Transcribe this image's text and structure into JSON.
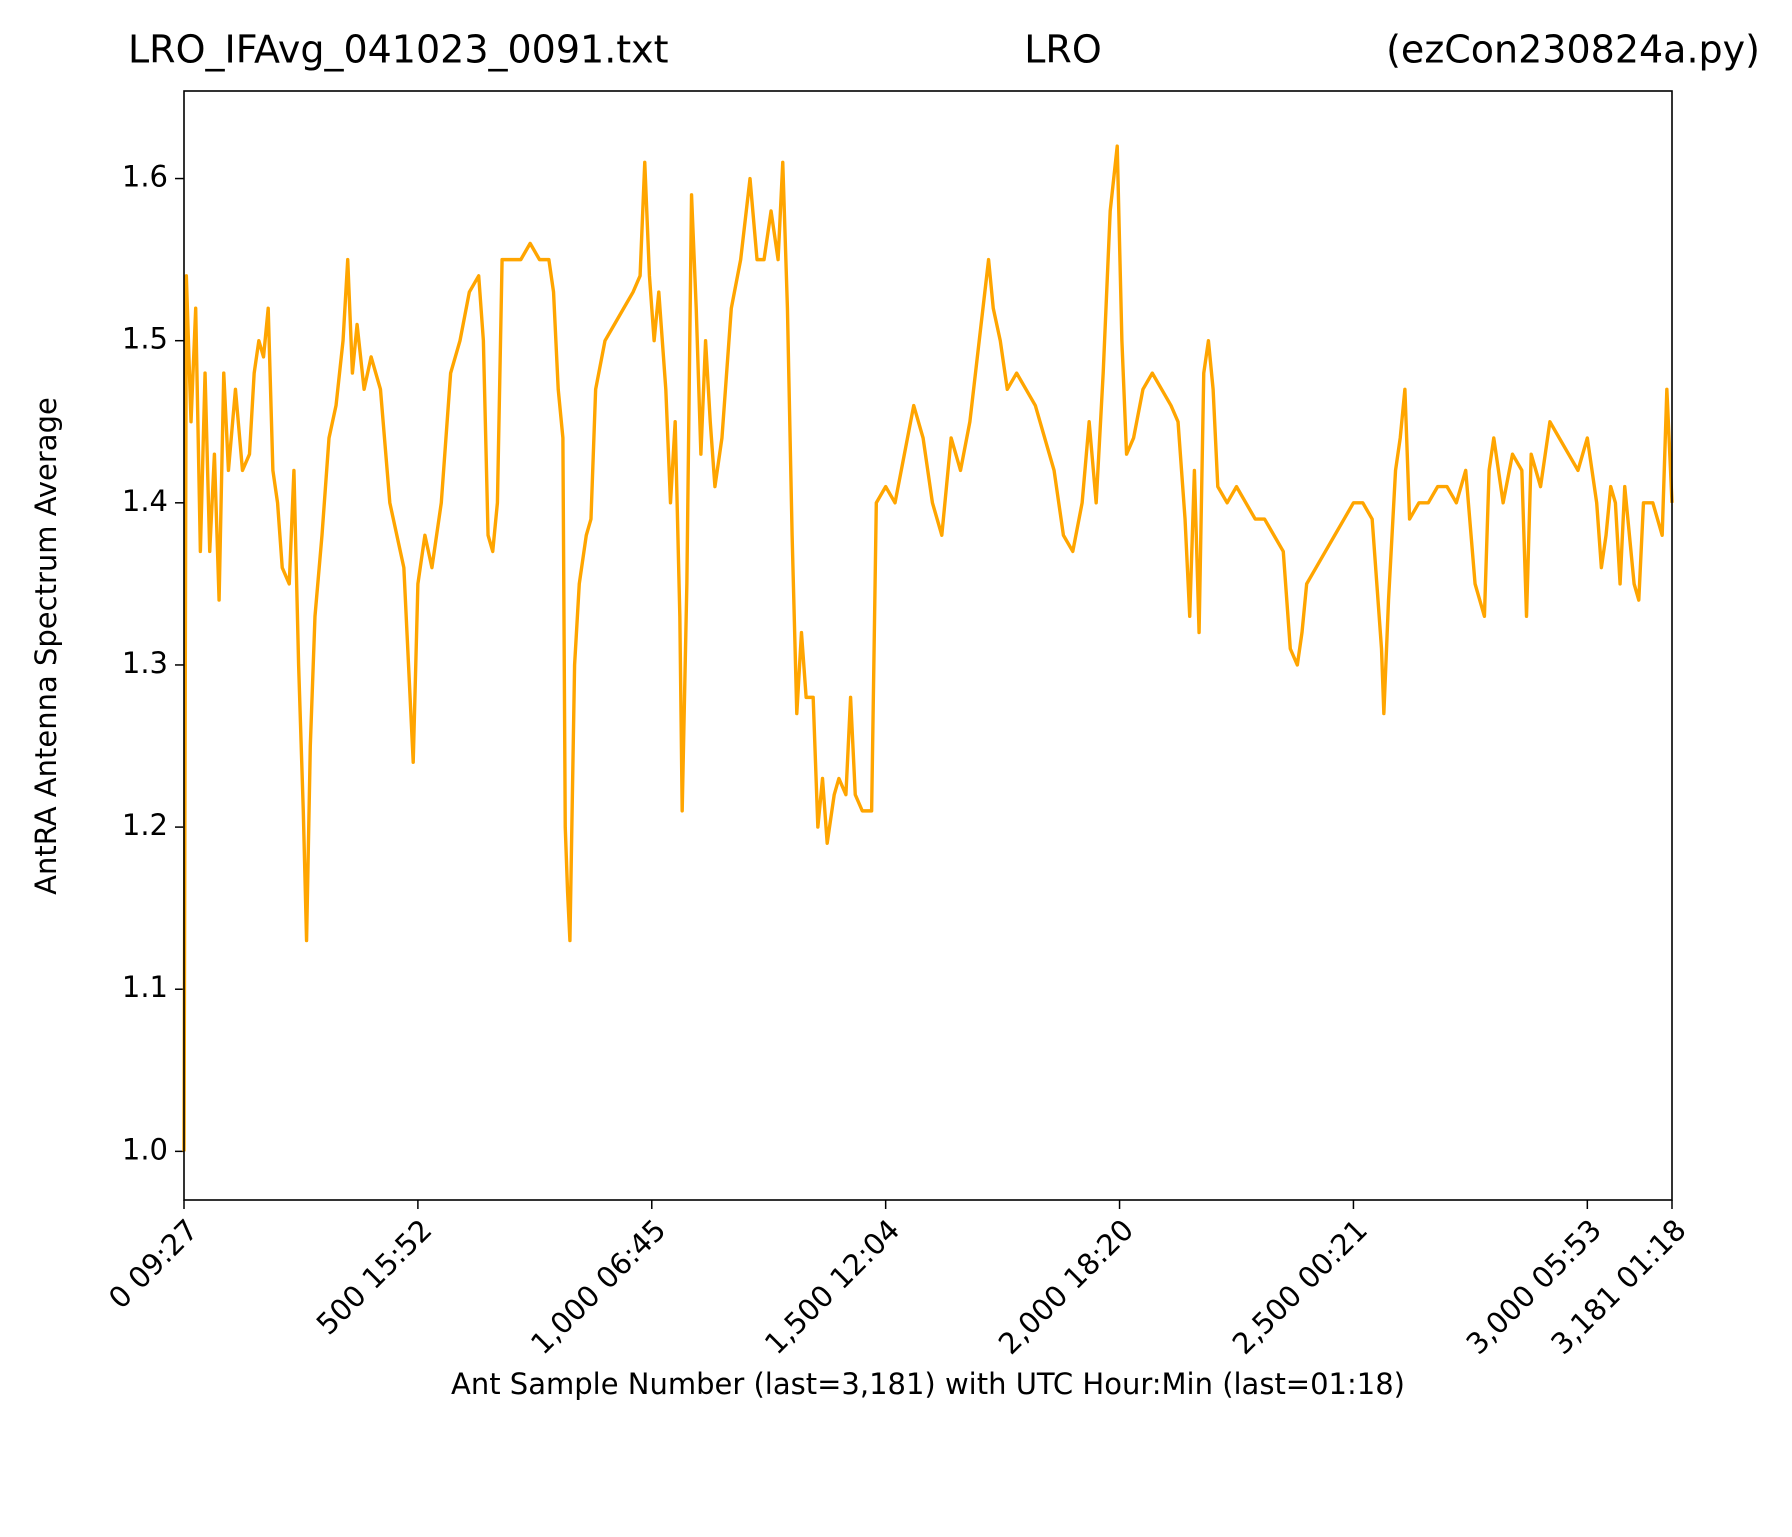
{
  "chart_data": {
    "type": "line",
    "title_left": "LRO_IFAvg_041023_0091.txt",
    "title_center": "LRO",
    "title_right": "(ezCon230824a.py)",
    "x_label": "Ant Sample Number (last=3,181) with UTC Hour:Min (last=01:18)",
    "y_label": "AntRA Antenna Spectrum Average",
    "xlim": [
      0,
      3181
    ],
    "ylim": [
      0.97,
      1.654
    ],
    "xticks": [
      {
        "value": 0,
        "label": "0  09:27"
      },
      {
        "value": 500,
        "label": "500  15:52"
      },
      {
        "value": 1000,
        "label": "1,000  06:45"
      },
      {
        "value": 1500,
        "label": "1,500  12:04"
      },
      {
        "value": 2000,
        "label": "2,000  18:20"
      },
      {
        "value": 2500,
        "label": "2,500  00:21"
      },
      {
        "value": 3000,
        "label": "3,000  05:53"
      },
      {
        "value": 3181,
        "label": "3,181  01:18"
      }
    ],
    "yticks": [
      {
        "value": 1,
        "label": "1.0"
      },
      1.1,
      1.2,
      1.3,
      1.4,
      1.5,
      1.6
    ],
    "grid": false,
    "series": [
      {
        "name": "AntRA",
        "color": "#FFA500",
        "x": [
          0,
          5,
          15,
          25,
          35,
          45,
          55,
          65,
          75,
          85,
          95,
          110,
          125,
          140,
          150,
          160,
          170,
          180,
          190,
          200,
          210,
          225,
          235,
          245,
          255,
          262,
          270,
          280,
          295,
          310,
          325,
          340,
          350,
          360,
          370,
          385,
          400,
          420,
          440,
          455,
          470,
          490,
          500,
          515,
          530,
          550,
          570,
          590,
          610,
          630,
          640,
          650,
          660,
          670,
          680,
          700,
          720,
          740,
          760,
          780,
          790,
          800,
          810,
          815,
          820,
          825,
          835,
          845,
          860,
          870,
          880,
          900,
          920,
          940,
          960,
          975,
          985,
          995,
          1005,
          1015,
          1030,
          1040,
          1050,
          1060,
          1065,
          1075,
          1085,
          1095,
          1105,
          1115,
          1125,
          1135,
          1150,
          1170,
          1190,
          1210,
          1225,
          1240,
          1255,
          1270,
          1280,
          1290,
          1300,
          1310,
          1320,
          1330,
          1345,
          1355,
          1365,
          1375,
          1390,
          1400,
          1415,
          1425,
          1435,
          1450,
          1470,
          1480,
          1500,
          1520,
          1540,
          1560,
          1580,
          1600,
          1620,
          1640,
          1660,
          1680,
          1700,
          1720,
          1730,
          1745,
          1760,
          1780,
          1800,
          1820,
          1840,
          1860,
          1880,
          1900,
          1920,
          1935,
          1950,
          1965,
          1980,
          1995,
          2005,
          2015,
          2030,
          2050,
          2070,
          2090,
          2110,
          2125,
          2140,
          2150,
          2160,
          2170,
          2180,
          2190,
          2200,
          2210,
          2230,
          2250,
          2270,
          2290,
          2310,
          2330,
          2350,
          2365,
          2380,
          2390,
          2400,
          2420,
          2440,
          2460,
          2480,
          2500,
          2520,
          2540,
          2550,
          2560,
          2565,
          2575,
          2590,
          2600,
          2610,
          2620,
          2640,
          2660,
          2680,
          2700,
          2720,
          2740,
          2760,
          2780,
          2790,
          2800,
          2820,
          2840,
          2860,
          2870,
          2880,
          2900,
          2920,
          2940,
          2960,
          2980,
          3000,
          3020,
          3030,
          3040,
          3050,
          3060,
          3070,
          3080,
          3100,
          3110,
          3120,
          3140,
          3160,
          3170,
          3181
        ],
        "values": [
          1.0,
          1.54,
          1.45,
          1.52,
          1.37,
          1.48,
          1.37,
          1.43,
          1.34,
          1.48,
          1.42,
          1.47,
          1.42,
          1.43,
          1.48,
          1.5,
          1.49,
          1.52,
          1.42,
          1.4,
          1.36,
          1.35,
          1.42,
          1.3,
          1.21,
          1.13,
          1.25,
          1.33,
          1.38,
          1.44,
          1.46,
          1.5,
          1.55,
          1.48,
          1.51,
          1.47,
          1.49,
          1.47,
          1.4,
          1.38,
          1.36,
          1.24,
          1.35,
          1.38,
          1.36,
          1.4,
          1.48,
          1.5,
          1.53,
          1.54,
          1.5,
          1.38,
          1.37,
          1.4,
          1.55,
          1.55,
          1.55,
          1.56,
          1.55,
          1.55,
          1.53,
          1.47,
          1.44,
          1.2,
          1.16,
          1.13,
          1.3,
          1.35,
          1.38,
          1.39,
          1.47,
          1.5,
          1.51,
          1.52,
          1.53,
          1.54,
          1.61,
          1.54,
          1.5,
          1.53,
          1.47,
          1.4,
          1.45,
          1.33,
          1.21,
          1.35,
          1.59,
          1.52,
          1.43,
          1.5,
          1.45,
          1.41,
          1.44,
          1.52,
          1.55,
          1.6,
          1.55,
          1.55,
          1.58,
          1.55,
          1.61,
          1.52,
          1.38,
          1.27,
          1.32,
          1.28,
          1.28,
          1.2,
          1.23,
          1.19,
          1.22,
          1.23,
          1.22,
          1.28,
          1.22,
          1.21,
          1.21,
          1.4,
          1.41,
          1.4,
          1.43,
          1.46,
          1.44,
          1.4,
          1.38,
          1.44,
          1.42,
          1.45,
          1.5,
          1.55,
          1.52,
          1.5,
          1.47,
          1.48,
          1.47,
          1.46,
          1.44,
          1.42,
          1.38,
          1.37,
          1.4,
          1.45,
          1.4,
          1.48,
          1.58,
          1.62,
          1.5,
          1.43,
          1.44,
          1.47,
          1.48,
          1.47,
          1.46,
          1.45,
          1.39,
          1.33,
          1.42,
          1.32,
          1.48,
          1.5,
          1.47,
          1.41,
          1.4,
          1.41,
          1.4,
          1.39,
          1.39,
          1.38,
          1.37,
          1.31,
          1.3,
          1.32,
          1.35,
          1.36,
          1.37,
          1.38,
          1.39,
          1.4,
          1.4,
          1.39,
          1.35,
          1.31,
          1.27,
          1.34,
          1.42,
          1.44,
          1.47,
          1.39,
          1.4,
          1.4,
          1.41,
          1.41,
          1.4,
          1.42,
          1.35,
          1.33,
          1.42,
          1.44,
          1.4,
          1.43,
          1.42,
          1.33,
          1.43,
          1.41,
          1.45,
          1.44,
          1.43,
          1.42,
          1.44,
          1.4,
          1.36,
          1.38,
          1.41,
          1.4,
          1.35,
          1.41,
          1.35,
          1.34,
          1.4,
          1.4,
          1.38,
          1.47,
          1.4
        ]
      }
    ]
  }
}
